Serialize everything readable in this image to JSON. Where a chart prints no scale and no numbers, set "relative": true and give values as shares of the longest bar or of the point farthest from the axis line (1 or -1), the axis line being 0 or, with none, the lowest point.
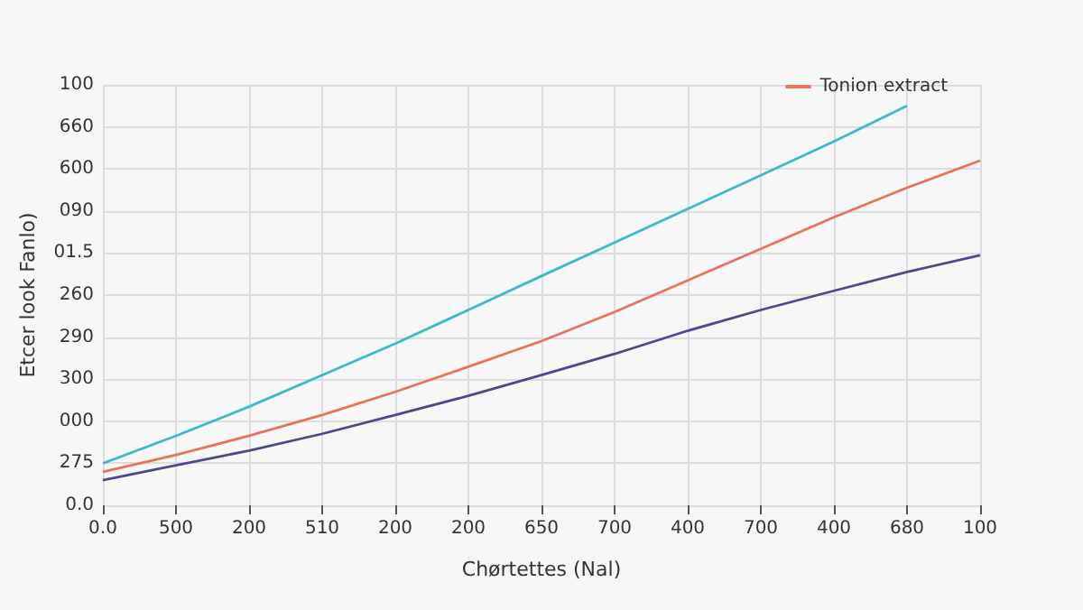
{
  "chart_data": {
    "type": "line",
    "xlabel": "Chørtettes (Nal)",
    "ylabel": "Etcer look Fanlo)",
    "categories": [
      "0.0",
      "500",
      "200",
      "510",
      "200",
      "200",
      "650",
      "700",
      "400",
      "700",
      "400",
      "680",
      "100"
    ],
    "relative": true,
    "annotations": [
      "100",
      "660",
      "600",
      "090",
      "01.5",
      "260",
      "290",
      "300",
      "000",
      "275",
      "0.0"
    ],
    "series": [
      {
        "color": "#3fb8c8",
        "values": [
          0.105,
          0.174,
          0.247,
          0.326,
          0.405,
          0.489,
          0.574,
          0.658,
          0.742,
          0.826,
          0.911,
          1.0,
          null
        ]
      },
      {
        "name": "Tonion extract",
        "color": "#e8735a",
        "values": [
          0.084,
          0.126,
          0.174,
          0.226,
          0.284,
          0.347,
          0.411,
          0.484,
          0.563,
          0.642,
          0.721,
          0.795,
          0.863
        ]
      },
      {
        "color": "#4b4a8c",
        "values": [
          0.063,
          0.1,
          0.137,
          0.179,
          0.226,
          0.274,
          0.326,
          0.379,
          0.437,
          0.489,
          0.537,
          0.584,
          0.626
        ]
      }
    ],
    "grid": true,
    "legend": "top right",
    "marker": "none",
    "line_style": "solid"
  }
}
